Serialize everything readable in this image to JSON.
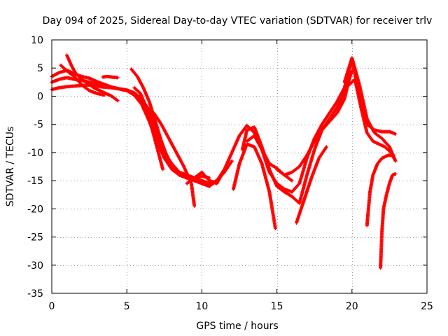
{
  "chart_data": {
    "type": "scatter",
    "title": "Day 094 of 2025, Sidereal Day-to-day VTEC variation (SDTVAR) for receiver trlv",
    "xlabel": "GPS time / hours",
    "ylabel": "SDTVAR / TECUs",
    "xlim": [
      0,
      25
    ],
    "ylim": [
      -35,
      10
    ],
    "xticks": [
      0,
      5,
      10,
      15,
      20,
      25
    ],
    "yticks": [
      10,
      5,
      0,
      -5,
      -10,
      -15,
      -20,
      -25,
      -30,
      -35
    ],
    "grid": true,
    "marker": "+",
    "color": "#ff0000",
    "series": [
      {
        "x": [
          0.0,
          0.5,
          1.0,
          1.5,
          2.0,
          2.5,
          3.0,
          3.5,
          4.0,
          4.5,
          5.0,
          5.5,
          6.0,
          6.5,
          7.0,
          7.5,
          8.0,
          8.5,
          9.0,
          9.5,
          10.0,
          10.5
        ],
        "y": [
          3.5,
          4.2,
          4.6,
          4.0,
          3.5,
          3.2,
          2.6,
          2.1,
          1.6,
          1.3,
          1.1,
          0.6,
          -0.5,
          -2.5,
          -6.0,
          -9.5,
          -12.5,
          -14.0,
          -14.5,
          -14.5,
          -14.2,
          -14.5
        ]
      },
      {
        "x": [
          0.0,
          0.5,
          1.0,
          1.5,
          2.0,
          2.5,
          3.0,
          3.5,
          4.0,
          4.5,
          5.0,
          5.5,
          6.0,
          6.5,
          7.0,
          7.5,
          8.0,
          8.5,
          9.0,
          9.5,
          10.0,
          10.5,
          11.0,
          11.5,
          12.0
        ],
        "y": [
          2.5,
          3.0,
          3.3,
          3.0,
          2.8,
          2.5,
          2.2,
          1.9,
          1.6,
          1.3,
          1.0,
          0.5,
          -1.0,
          -3.5,
          -7.0,
          -10.0,
          -12.0,
          -13.5,
          -14.0,
          -14.5,
          -15.0,
          -15.5,
          -15.0,
          -13.5,
          -11.5
        ]
      },
      {
        "x": [
          0.0,
          0.5,
          1.0,
          1.5,
          2.0,
          2.5,
          3.0,
          3.5,
          4.0,
          4.5,
          5.0,
          5.5,
          6.0,
          6.5,
          7.0,
          7.5,
          8.0,
          8.5,
          9.0,
          9.5,
          10.0,
          10.5,
          11.0,
          11.5
        ],
        "y": [
          1.2,
          1.5,
          1.7,
          1.8,
          1.9,
          2.0,
          1.8,
          1.6,
          1.5,
          1.3,
          1.0,
          0.2,
          -1.5,
          -4.5,
          -8.0,
          -11.0,
          -13.0,
          -14.0,
          -14.5,
          -15.0,
          -15.5,
          -16.0,
          -15.0,
          -13.0
        ]
      },
      {
        "x": [
          1.0,
          1.3,
          1.6,
          2.0,
          2.4,
          2.8,
          3.2,
          3.6,
          4.0,
          4.4
        ],
        "y": [
          7.3,
          5.5,
          4.0,
          3.0,
          2.3,
          1.5,
          1.0,
          0.5,
          0.0,
          -0.8
        ]
      },
      {
        "x": [
          0.6,
          1.0,
          1.5,
          2.0,
          2.5,
          3.0,
          3.5
        ],
        "y": [
          5.5,
          4.5,
          3.5,
          2.0,
          1.0,
          0.5,
          0.2
        ]
      },
      {
        "x": [
          3.4,
          3.7,
          4.0,
          4.4
        ],
        "y": [
          3.4,
          3.5,
          3.4,
          3.3
        ]
      },
      {
        "x": [
          5.3,
          5.7,
          6.1,
          6.5,
          6.9,
          7.3,
          7.7,
          8.1,
          8.5,
          8.9,
          9.3
        ],
        "y": [
          4.8,
          3.5,
          1.5,
          -1.0,
          -4.5,
          -8.0,
          -11.0,
          -12.5,
          -13.5,
          -14.0,
          -14.5
        ]
      },
      {
        "x": [
          5.5,
          5.9,
          6.3,
          6.7,
          7.1,
          7.4
        ],
        "y": [
          1.5,
          0.5,
          -2.0,
          -6.0,
          -10.0,
          -13.0
        ]
      },
      {
        "x": [
          6.8,
          7.3,
          7.8,
          8.3,
          8.8,
          9.3,
          9.5
        ],
        "y": [
          -3.0,
          -5.0,
          -7.5,
          -10.0,
          -12.5,
          -15.5,
          -19.5
        ]
      },
      {
        "x": [
          9.0,
          9.5,
          10.0,
          10.5,
          11.0,
          11.5,
          12.0,
          12.5,
          13.0,
          13.5,
          14.0,
          14.5,
          15.0,
          15.5,
          16.0
        ],
        "y": [
          -15.5,
          -14.5,
          -13.5,
          -15.0,
          -15.5,
          -13.0,
          -10.0,
          -7.0,
          -5.2,
          -6.5,
          -9.5,
          -12.0,
          -12.8,
          -14.0,
          -15.0
        ]
      },
      {
        "x": [
          12.1,
          12.5,
          13.0,
          13.5,
          14.0,
          14.5,
          14.9
        ],
        "y": [
          -16.5,
          -12.0,
          -8.5,
          -9.0,
          -12.0,
          -17.0,
          -23.5
        ]
      },
      {
        "x": [
          12.7,
          13.0,
          13.5,
          14.0,
          14.5,
          15.0,
          15.5,
          16.0,
          16.5,
          17.0,
          17.5,
          18.0,
          18.5,
          19.0,
          19.5,
          20.0
        ],
        "y": [
          -9.5,
          -6.0,
          -5.5,
          -9.0,
          -13.0,
          -16.0,
          -17.0,
          -17.8,
          -19.0,
          -14.0,
          -9.5,
          -6.0,
          -4.0,
          -2.0,
          0.5,
          4.5
        ]
      },
      {
        "x": [
          13.0,
          13.5,
          14.0,
          14.5,
          15.0,
          15.5,
          16.0,
          16.5,
          17.0,
          17.5,
          18.0,
          18.5,
          19.0,
          19.5,
          20.0,
          20.5,
          21.0,
          21.5,
          22.0,
          22.5,
          22.9
        ],
        "y": [
          -8.0,
          -7.0,
          -9.5,
          -13.5,
          -15.5,
          -16.5,
          -17.0,
          -15.5,
          -11.0,
          -7.5,
          -5.0,
          -3.0,
          -1.0,
          1.5,
          6.5,
          0.0,
          -5.0,
          -6.0,
          -6.3,
          -6.3,
          -6.7
        ]
      },
      {
        "x": [
          15.0,
          15.5,
          16.0,
          16.5,
          17.0,
          17.5,
          18.0,
          18.5,
          19.0,
          19.5,
          19.9
        ],
        "y": [
          -13.0,
          -14.0,
          -13.5,
          -12.5,
          -10.5,
          -8.0,
          -6.0,
          -4.5,
          -3.0,
          -0.5,
          4.0
        ]
      },
      {
        "x": [
          16.3,
          16.8,
          17.3,
          17.8,
          18.3
        ],
        "y": [
          -22.5,
          -18.5,
          -14.5,
          -11.0,
          -9.0
        ]
      },
      {
        "x": [
          19.5,
          20.0,
          20.5,
          21.0,
          21.5,
          22.0,
          22.5,
          22.9
        ],
        "y": [
          2.5,
          6.8,
          2.0,
          -4.0,
          -6.5,
          -7.5,
          -9.0,
          -11.5
        ]
      },
      {
        "x": [
          19.8,
          20.2,
          20.6,
          21.0,
          21.4,
          21.8,
          22.2,
          22.6,
          22.9
        ],
        "y": [
          2.0,
          3.0,
          -2.0,
          -6.5,
          -8.0,
          -8.5,
          -9.0,
          -10.0,
          -11.5
        ]
      },
      {
        "x": [
          21.0,
          21.2,
          21.4,
          21.7,
          22.0,
          22.4,
          22.8
        ],
        "y": [
          -23.0,
          -17.0,
          -14.0,
          -12.0,
          -11.0,
          -10.5,
          -10.5
        ]
      },
      {
        "x": [
          21.9,
          22.0,
          22.1,
          22.3,
          22.5,
          22.7,
          22.9
        ],
        "y": [
          -30.5,
          -24.0,
          -20.0,
          -17.5,
          -15.5,
          -14.0,
          -13.8
        ]
      }
    ]
  }
}
